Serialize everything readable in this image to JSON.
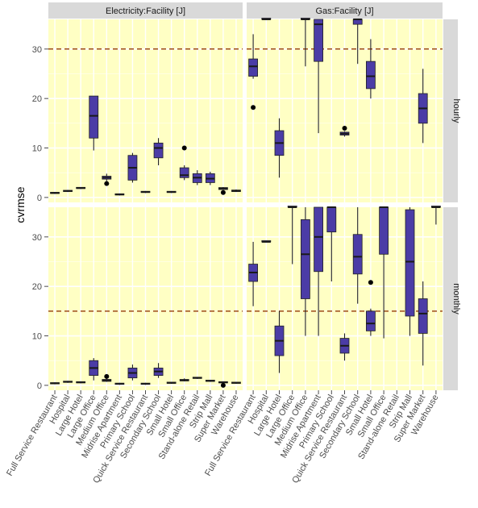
{
  "colors": {
    "panel_background": "#ffffc4",
    "grid": "#ffffff",
    "strip_background": "#d9d9d9",
    "box_fill": "#4b3ca6",
    "box_outline": "#222222",
    "reference_line": "#9c4a1a"
  },
  "chart_data": {
    "type": "boxplot",
    "ylabel": "cvrmse",
    "xlabel": "",
    "columns": [
      "Electricity:Facility [J]",
      "Gas:Facility [J]"
    ],
    "rows": [
      "hourly",
      "monthly"
    ],
    "categories": [
      "Full Service Restaurant",
      "Hospital",
      "Large Hotel",
      "Large Office",
      "Medium Office",
      "Midrise Apartment",
      "Primary School",
      "Quick Service Restaurant",
      "Secondary School",
      "Small Hotel",
      "Small Office",
      "Stand-alone Retail",
      "Strip Mall",
      "Super Market",
      "Warehouse"
    ],
    "y_ticks": [
      0,
      10,
      20,
      30
    ],
    "ylim": [
      -1,
      36
    ],
    "reference_lines": {
      "hourly": 30,
      "monthly": 15
    },
    "panels": [
      {
        "column": "Electricity:Facility [J]",
        "row": "hourly",
        "boxes": [
          {
            "category": "Full Service Restaurant",
            "min": 0.7,
            "q1": 0.8,
            "median": 0.9,
            "q3": 1.0,
            "max": 1.1,
            "outliers": []
          },
          {
            "category": "Hospital",
            "min": 1.1,
            "q1": 1.2,
            "median": 1.3,
            "q3": 1.4,
            "max": 1.5,
            "outliers": []
          },
          {
            "category": "Large Hotel",
            "min": 1.7,
            "q1": 1.8,
            "median": 1.9,
            "q3": 2.0,
            "max": 2.1,
            "outliers": []
          },
          {
            "category": "Large Office",
            "min": 9.5,
            "q1": 12.0,
            "median": 16.5,
            "q3": 20.5,
            "max": 20.5,
            "outliers": []
          },
          {
            "category": "Medium Office",
            "min": 3.3,
            "q1": 3.7,
            "median": 4.0,
            "q3": 4.3,
            "max": 4.8,
            "outliers": [
              2.8
            ]
          },
          {
            "category": "Midrise Apartment",
            "min": 0.4,
            "q1": 0.5,
            "median": 0.6,
            "q3": 0.7,
            "max": 0.8,
            "outliers": []
          },
          {
            "category": "Primary School",
            "min": 3.0,
            "q1": 3.5,
            "median": 6.0,
            "q3": 8.5,
            "max": 9.0,
            "outliers": []
          },
          {
            "category": "Quick Service Restaurant",
            "min": 0.9,
            "q1": 1.0,
            "median": 1.1,
            "q3": 1.2,
            "max": 1.3,
            "outliers": []
          },
          {
            "category": "Secondary School",
            "min": 6.5,
            "q1": 8.0,
            "median": 10.0,
            "q3": 11.0,
            "max": 12.0,
            "outliers": []
          },
          {
            "category": "Small Hotel",
            "min": 0.9,
            "q1": 1.0,
            "median": 1.1,
            "q3": 1.2,
            "max": 1.3,
            "outliers": []
          },
          {
            "category": "Small Office",
            "min": 3.5,
            "q1": 4.0,
            "median": 4.5,
            "q3": 6.0,
            "max": 6.5,
            "outliers": [
              10.0
            ]
          },
          {
            "category": "Stand-alone Retail",
            "min": 2.5,
            "q1": 3.0,
            "median": 4.0,
            "q3": 4.8,
            "max": 5.5,
            "outliers": []
          },
          {
            "category": "Strip Mall",
            "min": 2.5,
            "q1": 3.0,
            "median": 3.8,
            "q3": 4.8,
            "max": 5.2,
            "outliers": []
          },
          {
            "category": "Super Market",
            "min": 1.5,
            "q1": 1.6,
            "median": 1.8,
            "q3": 2.0,
            "max": 2.1,
            "outliers": [
              1.0
            ]
          },
          {
            "category": "Warehouse",
            "min": 1.1,
            "q1": 1.2,
            "median": 1.3,
            "q3": 1.5,
            "max": 1.6,
            "outliers": []
          }
        ]
      },
      {
        "column": "Gas:Facility [J]",
        "row": "hourly",
        "boxes": [
          {
            "category": "Full Service Restaurant",
            "min": 24.0,
            "q1": 24.5,
            "median": 26.5,
            "q3": 28.0,
            "max": 33.0,
            "outliers": [
              18.2
            ]
          },
          {
            "category": "Hospital",
            "min": 36.0,
            "q1": 36.0,
            "median": 36.0,
            "q3": 36.0,
            "max": 36.0,
            "outliers": []
          },
          {
            "category": "Large Hotel",
            "min": 4.0,
            "q1": 8.5,
            "median": 11.0,
            "q3": 13.5,
            "max": 16.0,
            "outliers": []
          },
          {
            "category": "Medium Office",
            "min": 26.5,
            "q1": 36.0,
            "median": 36.0,
            "q3": 36.0,
            "max": 36.0,
            "outliers": []
          },
          {
            "category": "Midrise Apartment",
            "min": 13.0,
            "q1": 27.5,
            "median": 35.0,
            "q3": 36.0,
            "max": 36.0,
            "outliers": []
          },
          {
            "category": "Quick Service Restaurant",
            "min": 12.3,
            "q1": 12.6,
            "median": 12.9,
            "q3": 13.2,
            "max": 13.4,
            "outliers": [
              14.0
            ]
          },
          {
            "category": "Secondary School",
            "min": 27.0,
            "q1": 35.0,
            "median": 36.0,
            "q3": 36.0,
            "max": 36.0,
            "outliers": []
          },
          {
            "category": "Small Hotel",
            "min": 20.0,
            "q1": 22.0,
            "median": 24.5,
            "q3": 27.5,
            "max": 32.0,
            "outliers": []
          },
          {
            "category": "Super Market",
            "min": 11.0,
            "q1": 15.0,
            "median": 18.0,
            "q3": 21.0,
            "max": 26.0,
            "outliers": []
          }
        ]
      },
      {
        "column": "Electricity:Facility [J]",
        "row": "monthly",
        "boxes": [
          {
            "category": "Full Service Restaurant",
            "min": 0.2,
            "q1": 0.3,
            "median": 0.4,
            "q3": 0.5,
            "max": 0.6,
            "outliers": []
          },
          {
            "category": "Hospital",
            "min": 0.5,
            "q1": 0.6,
            "median": 0.7,
            "q3": 0.8,
            "max": 0.9,
            "outliers": []
          },
          {
            "category": "Large Hotel",
            "min": 0.4,
            "q1": 0.5,
            "median": 0.6,
            "q3": 0.7,
            "max": 0.8,
            "outliers": []
          },
          {
            "category": "Large Office",
            "min": 1.0,
            "q1": 2.0,
            "median": 3.5,
            "q3": 5.0,
            "max": 5.5,
            "outliers": []
          },
          {
            "category": "Medium Office",
            "min": 0.7,
            "q1": 0.8,
            "median": 1.0,
            "q3": 1.2,
            "max": 1.4,
            "outliers": [
              1.8
            ]
          },
          {
            "category": "Midrise Apartment",
            "min": 0.1,
            "q1": 0.2,
            "median": 0.3,
            "q3": 0.4,
            "max": 0.5,
            "outliers": []
          },
          {
            "category": "Primary School",
            "min": 1.0,
            "q1": 1.5,
            "median": 2.5,
            "q3": 3.5,
            "max": 4.2,
            "outliers": []
          },
          {
            "category": "Quick Service Restaurant",
            "min": 0.1,
            "q1": 0.2,
            "median": 0.3,
            "q3": 0.4,
            "max": 0.5,
            "outliers": []
          },
          {
            "category": "Secondary School",
            "min": 1.5,
            "q1": 2.0,
            "median": 2.8,
            "q3": 3.5,
            "max": 4.5,
            "outliers": []
          },
          {
            "category": "Small Hotel",
            "min": 0.3,
            "q1": 0.4,
            "median": 0.5,
            "q3": 0.6,
            "max": 0.7,
            "outliers": []
          },
          {
            "category": "Small Office",
            "min": 0.8,
            "q1": 0.9,
            "median": 1.0,
            "q3": 1.2,
            "max": 1.4,
            "outliers": []
          },
          {
            "category": "Stand-alone Retail",
            "min": 1.3,
            "q1": 1.4,
            "median": 1.5,
            "q3": 1.6,
            "max": 1.7,
            "outliers": []
          },
          {
            "category": "Strip Mall",
            "min": 0.7,
            "q1": 0.8,
            "median": 0.9,
            "q3": 1.0,
            "max": 1.1,
            "outliers": []
          },
          {
            "category": "Super Market",
            "min": 0.4,
            "q1": 0.5,
            "median": 0.6,
            "q3": 0.7,
            "max": 0.8,
            "outliers": [
              0.0
            ]
          },
          {
            "category": "Warehouse",
            "min": 0.3,
            "q1": 0.4,
            "median": 0.5,
            "q3": 0.6,
            "max": 0.7,
            "outliers": []
          }
        ]
      },
      {
        "column": "Gas:Facility [J]",
        "row": "monthly",
        "boxes": [
          {
            "category": "Full Service Restaurant",
            "min": 16.0,
            "q1": 21.0,
            "median": 22.8,
            "q3": 24.5,
            "max": 29.0,
            "outliers": []
          },
          {
            "category": "Hospital",
            "min": 29.0,
            "q1": 29.0,
            "median": 29.0,
            "q3": 29.0,
            "max": 29.0,
            "outliers": []
          },
          {
            "category": "Large Hotel",
            "min": 2.5,
            "q1": 6.0,
            "median": 9.0,
            "q3": 12.0,
            "max": 15.0,
            "outliers": []
          },
          {
            "category": "Large Office",
            "min": 24.5,
            "q1": 36.0,
            "median": 36.0,
            "q3": 36.0,
            "max": 36.0,
            "outliers": []
          },
          {
            "category": "Medium Office",
            "min": 10.0,
            "q1": 17.5,
            "median": 26.5,
            "q3": 33.5,
            "max": 36.0,
            "outliers": []
          },
          {
            "category": "Midrise Apartment",
            "min": 10.0,
            "q1": 23.0,
            "median": 30.0,
            "q3": 36.0,
            "max": 36.0,
            "outliers": []
          },
          {
            "category": "Primary School",
            "min": 21.0,
            "q1": 31.0,
            "median": 36.0,
            "q3": 36.0,
            "max": 36.0,
            "outliers": []
          },
          {
            "category": "Quick Service Restaurant",
            "min": 5.0,
            "q1": 6.5,
            "median": 8.0,
            "q3": 9.5,
            "max": 10.5,
            "outliers": []
          },
          {
            "category": "Secondary School",
            "min": 16.5,
            "q1": 22.5,
            "median": 26.0,
            "q3": 30.5,
            "max": 36.0,
            "outliers": []
          },
          {
            "category": "Small Hotel",
            "min": 10.0,
            "q1": 11.0,
            "median": 12.5,
            "q3": 15.0,
            "max": 15.5,
            "outliers": [
              20.8
            ]
          },
          {
            "category": "Small Office",
            "min": 9.5,
            "q1": 26.5,
            "median": 36.0,
            "q3": 36.0,
            "max": 36.0,
            "outliers": []
          },
          {
            "category": "Strip Mall",
            "min": 10.0,
            "q1": 14.0,
            "median": 25.0,
            "q3": 35.5,
            "max": 36.0,
            "outliers": []
          },
          {
            "category": "Super Market",
            "min": 4.0,
            "q1": 10.5,
            "median": 14.5,
            "q3": 17.5,
            "max": 21.0,
            "outliers": []
          },
          {
            "category": "Warehouse",
            "min": 32.5,
            "q1": 36.0,
            "median": 36.0,
            "q3": 36.0,
            "max": 36.0,
            "outliers": []
          }
        ]
      }
    ]
  }
}
